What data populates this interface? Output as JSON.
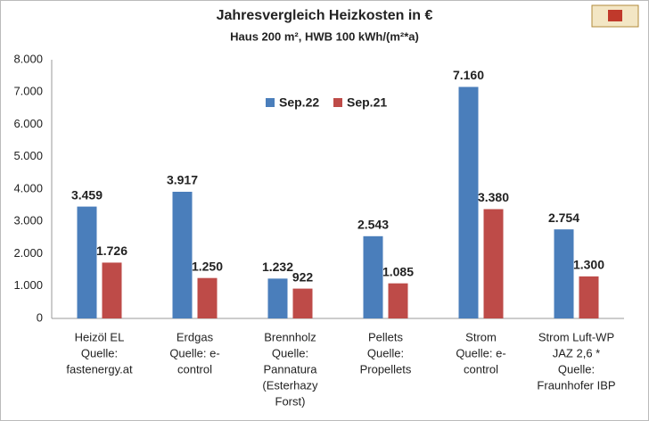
{
  "chart_data": {
    "type": "bar",
    "title": "Jahresvergleich Heizkosten in €",
    "subtitle": "Haus 200 m², HWB 100 kWh/(m²*a)",
    "categories": [
      [
        "Heizöl EL",
        "Quelle:",
        "fastenergy.at"
      ],
      [
        "Erdgas",
        "Quelle: e-",
        "control"
      ],
      [
        "Brennholz",
        "Quelle:",
        "Pannatura",
        "(Esterhazy",
        "Forst)"
      ],
      [
        "Pellets",
        "Quelle:",
        "Propellets"
      ],
      [
        "Strom",
        "Quelle: e-",
        "control"
      ],
      [
        "Strom Luft-WP",
        "JAZ 2,6 *",
        "Quelle:",
        "Fraunhofer IBP"
      ]
    ],
    "series": [
      {
        "name": "Sep.22",
        "color": "#4a7ebb",
        "values": [
          3459,
          3917,
          1232,
          2543,
          7160,
          2754
        ],
        "value_labels": [
          "3.459",
          "3.917",
          "1.232",
          "2.543",
          "7.160",
          "2.754"
        ]
      },
      {
        "name": "Sep.21",
        "color": "#be4b48",
        "values": [
          1726,
          1250,
          922,
          1085,
          3380,
          1300
        ],
        "value_labels": [
          "1.726",
          "1.250",
          "922",
          "1.085",
          "3.380",
          "1.300"
        ]
      }
    ],
    "ylim": [
      0,
      8000
    ],
    "yticks": [
      0,
      {
        "value": 1000,
        "label": "1.000"
      },
      {
        "value": 2000,
        "label": "2.000"
      },
      {
        "value": 3000,
        "label": "3.000"
      },
      {
        "value": 4000,
        "label": "4.000"
      },
      {
        "value": 5000,
        "label": "5.000"
      },
      {
        "value": 6000,
        "label": "6.000"
      },
      {
        "value": 7000,
        "label": "7.000"
      },
      {
        "value": 8000,
        "label": "8.000"
      }
    ],
    "grid": false,
    "legend": "top"
  }
}
